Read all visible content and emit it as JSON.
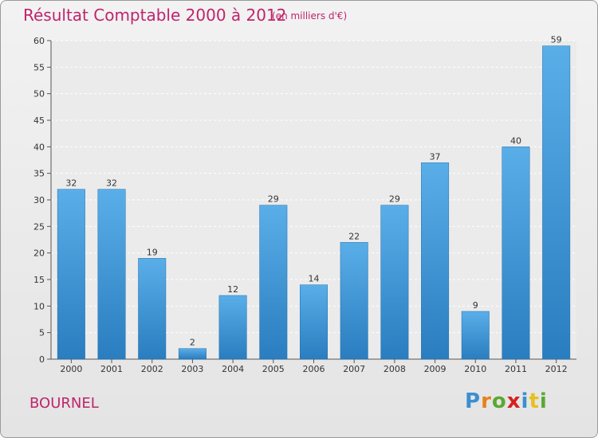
{
  "chart_data": {
    "type": "bar",
    "title": "Résultat Comptable 2000 à 2012",
    "subtitle": "(en milliers d'€)",
    "categories": [
      "2000",
      "2001",
      "2002",
      "2003",
      "2004",
      "2005",
      "2006",
      "2007",
      "2008",
      "2009",
      "2010",
      "2011",
      "2012"
    ],
    "values": [
      32,
      32,
      19,
      2,
      12,
      29,
      14,
      22,
      29,
      37,
      9,
      40,
      59
    ],
    "ylim": [
      0,
      60
    ],
    "yticks": [
      0,
      5,
      10,
      15,
      20,
      25,
      30,
      35,
      40,
      45,
      50,
      55,
      60
    ],
    "grid": true,
    "colors": {
      "bar_top": "#5aaee8",
      "bar_bottom": "#2a7dbf",
      "title": "#c0246b"
    }
  },
  "footer": {
    "location": "BOURNEL",
    "brand": {
      "letters": [
        "P",
        "r",
        "o",
        "x",
        "i",
        "t",
        "i"
      ],
      "colors": [
        "#3a8fd0",
        "#e8801c",
        "#5aa832",
        "#d8201c",
        "#3a8fd0",
        "#e8c01c",
        "#5aa832"
      ]
    }
  }
}
